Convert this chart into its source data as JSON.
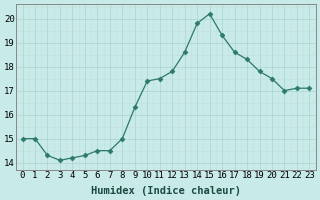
{
  "x": [
    0,
    1,
    2,
    3,
    4,
    5,
    6,
    7,
    8,
    9,
    10,
    11,
    12,
    13,
    14,
    15,
    16,
    17,
    18,
    19,
    20,
    21,
    22,
    23
  ],
  "y": [
    15.0,
    15.0,
    14.3,
    14.1,
    14.2,
    14.3,
    14.5,
    14.5,
    15.0,
    16.3,
    17.4,
    17.5,
    17.8,
    18.6,
    19.8,
    20.2,
    19.3,
    18.6,
    18.3,
    17.8,
    17.5,
    17.0,
    17.1,
    17.1
  ],
  "xlabel": "Humidex (Indice chaleur)",
  "ylim": [
    13.7,
    20.6
  ],
  "xlim": [
    -0.5,
    23.5
  ],
  "yticks": [
    14,
    15,
    16,
    17,
    18,
    19,
    20
  ],
  "xtick_labels": [
    "0",
    "1",
    "2",
    "3",
    "4",
    "5",
    "6",
    "7",
    "8",
    "9",
    "10",
    "11",
    "12",
    "13",
    "14",
    "15",
    "16",
    "17",
    "18",
    "19",
    "20",
    "21",
    "22",
    "23"
  ],
  "line_color": "#2d7a6a",
  "marker": "D",
  "marker_size": 2.5,
  "bg_color": "#c8eae8",
  "grid_major_color": "#b0d8d0",
  "grid_minor_color": "#c0e0d8",
  "label_fontsize": 7.5,
  "tick_fontsize": 6.5,
  "spine_color": "#888888"
}
